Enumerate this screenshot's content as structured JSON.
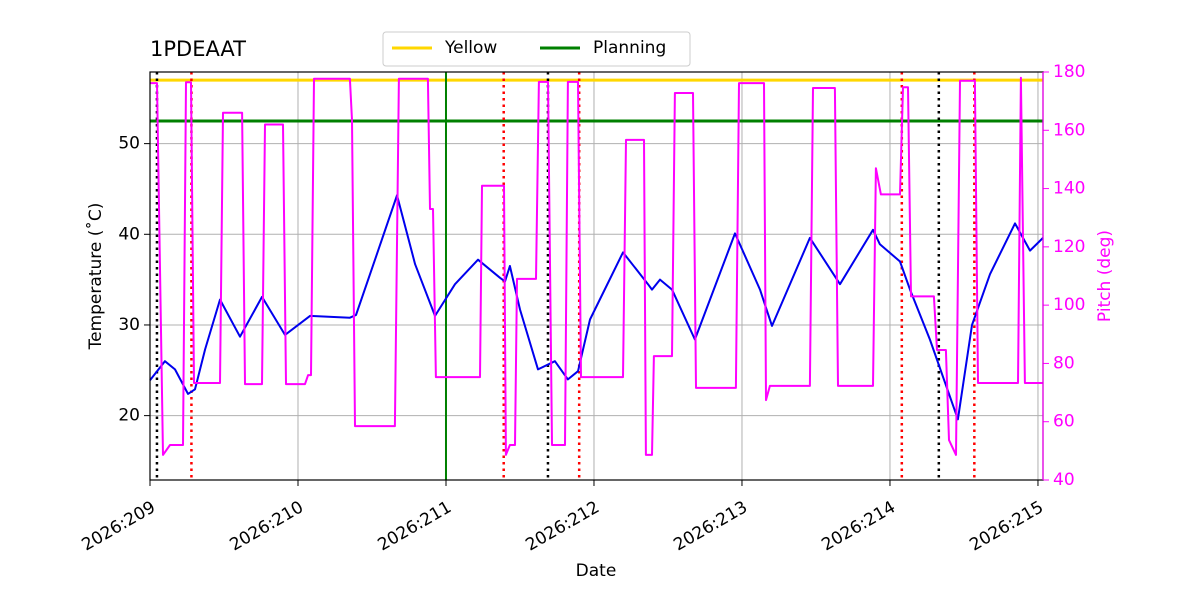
{
  "chart_data": {
    "type": "line",
    "title": "1PDEAAT",
    "xlabel": "Date",
    "ylabel": "Temperature (˚C)",
    "y2label": "Pitch (deg)",
    "xlim": [
      209,
      215.034
    ],
    "xticks": [
      {
        "value": 209,
        "label": "2026:209"
      },
      {
        "value": 210,
        "label": "2026:210"
      },
      {
        "value": 211,
        "label": "2026:211"
      },
      {
        "value": 212,
        "label": "2026:212"
      },
      {
        "value": 213,
        "label": "2026:213"
      },
      {
        "value": 214,
        "label": "2026:214"
      },
      {
        "value": 215,
        "label": "2026:215"
      }
    ],
    "ylim": [
      12.9,
      57.9
    ],
    "yticks": [
      20,
      30,
      40,
      50
    ],
    "y2lim": [
      40,
      180
    ],
    "y2ticks": [
      40,
      60,
      80,
      100,
      120,
      140,
      160,
      180
    ],
    "y2color": "#ff00ff",
    "grid": true,
    "legend": "top",
    "hlines": [
      {
        "name": "Yellow",
        "color": "#ffd700",
        "value": 57
      },
      {
        "name": "Planning",
        "color": "#008000",
        "value": 52.5
      }
    ],
    "vlines": [
      {
        "x": 209.047,
        "color": "#000000",
        "style": "dotted"
      },
      {
        "x": 211.689,
        "color": "#000000",
        "style": "dotted"
      },
      {
        "x": 214.33,
        "color": "#000000",
        "style": "dotted"
      },
      {
        "x": 209.28,
        "color": "#ff0000",
        "style": "dotted"
      },
      {
        "x": 211.39,
        "color": "#ff0000",
        "style": "dotted"
      },
      {
        "x": 211.9,
        "color": "#ff0000",
        "style": "dotted"
      },
      {
        "x": 214.08,
        "color": "#ff0000",
        "style": "dotted"
      },
      {
        "x": 214.57,
        "color": "#ff0000",
        "style": "dotted"
      },
      {
        "x": 211.0,
        "color": "#008000",
        "style": "solid"
      }
    ],
    "series": [
      {
        "color": "#0000ee",
        "x": [
          209.0,
          209.101,
          209.169,
          209.257,
          209.304,
          209.372,
          209.473,
          209.608,
          209.757,
          209.912,
          210.081,
          210.351,
          210.392,
          210.52,
          210.669,
          210.791,
          210.926,
          211.061,
          211.216,
          211.365,
          211.399,
          211.432,
          211.5,
          211.622,
          211.736,
          211.824,
          211.892,
          211.973,
          212.196,
          212.365,
          212.392,
          212.446,
          212.527,
          212.682,
          212.953,
          213.122,
          213.203,
          213.459,
          213.662,
          213.885,
          213.932,
          214.068,
          214.135,
          214.27,
          214.459,
          214.554,
          214.676,
          214.845,
          214.946,
          215.034
        ],
        "values": [
          23.9,
          26.0,
          25.1,
          22.4,
          22.9,
          27.3,
          32.8,
          28.7,
          33.1,
          28.9,
          31.0,
          30.8,
          31.1,
          37.2,
          44.3,
          36.7,
          31.0,
          34.5,
          37.2,
          35.2,
          34.8,
          36.5,
          31.7,
          25.1,
          26.0,
          24.0,
          24.9,
          30.6,
          38.0,
          34.5,
          33.9,
          35.0,
          33.9,
          28.4,
          40.1,
          33.9,
          29.9,
          39.6,
          34.5,
          40.5,
          38.9,
          37.0,
          33.9,
          28.4,
          19.6,
          30.0,
          35.6,
          41.2,
          38.2,
          39.6
        ]
      },
      {
        "color": "#ff00ff",
        "axis": "y2",
        "x": [
          209.0,
          209.047,
          209.088,
          209.135,
          209.223,
          209.243,
          209.277,
          209.297,
          209.473,
          209.493,
          209.622,
          209.642,
          209.757,
          209.777,
          209.899,
          209.919,
          210.047,
          210.068,
          210.088,
          210.108,
          210.351,
          210.365,
          210.385,
          210.655,
          210.682,
          210.878,
          210.892,
          210.912,
          210.932,
          211.23,
          211.243,
          211.392,
          211.405,
          211.432,
          211.466,
          211.48,
          211.608,
          211.628,
          211.689,
          211.716,
          211.804,
          211.824,
          211.892,
          211.912,
          212.196,
          212.216,
          212.338,
          212.351,
          212.392,
          212.405,
          212.527,
          212.547,
          212.669,
          212.689,
          212.959,
          212.98,
          213.149,
          213.162,
          213.189,
          213.459,
          213.48,
          213.628,
          213.649,
          213.885,
          213.905,
          213.939,
          214.068,
          214.088,
          214.122,
          214.142,
          214.297,
          214.318,
          214.378,
          214.399,
          214.446,
          214.473,
          214.574,
          214.595,
          214.865,
          214.885,
          214.912,
          215.034
        ],
        "values": [
          176.2,
          176.2,
          48.6,
          52,
          52,
          176.5,
          176.5,
          73.3,
          73.3,
          166,
          166,
          72.9,
          72.9,
          162,
          162,
          72.9,
          72.9,
          76,
          76,
          177.7,
          177.7,
          163.5,
          58.5,
          58.5,
          177.7,
          177.7,
          133,
          133,
          75.3,
          75.3,
          141,
          141,
          48.6,
          52,
          52,
          109,
          109,
          176.6,
          176.6,
          52,
          52,
          176.6,
          176.6,
          75.3,
          75.3,
          156.7,
          156.7,
          48.6,
          48.6,
          82.5,
          82.5,
          172.8,
          172.8,
          71.6,
          71.6,
          176.2,
          176.2,
          67.4,
          72.3,
          72.3,
          174.5,
          174.5,
          72.3,
          72.3,
          147,
          138,
          138,
          174.8,
          174.8,
          103,
          103,
          84.6,
          84.6,
          53.7,
          48.6,
          177,
          177,
          73.3,
          73.3,
          178,
          73.3,
          73.3
        ]
      }
    ]
  }
}
